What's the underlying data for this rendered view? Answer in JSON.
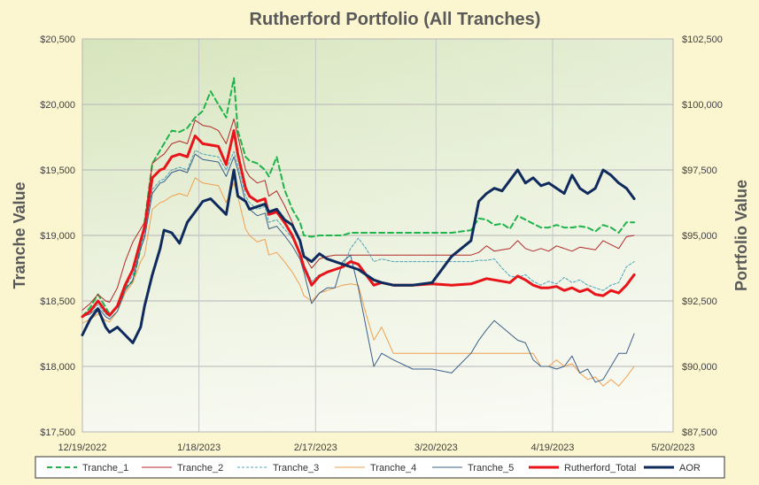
{
  "chart_data": {
    "type": "line",
    "title": "Rutherford Portfolio (All Tranches)",
    "ylabel_left": "Tranche Value",
    "ylabel_right": "Portfolio Value",
    "x_ticks": [
      "12/19/2022",
      "1/18/2023",
      "2/17/2023",
      "3/20/2023",
      "4/19/2023",
      "5/20/2023"
    ],
    "x_tick_days": [
      0,
      30,
      60,
      91,
      121,
      152
    ],
    "xlim_days": [
      0,
      152
    ],
    "left_ticks": [
      "$17,500",
      "$18,000",
      "$18,500",
      "$19,000",
      "$19,500",
      "$20,000",
      "$20,500"
    ],
    "right_ticks": [
      "$87,500",
      "$90,000",
      "$92,500",
      "$95,000",
      "$97,500",
      "$100,000",
      "$102,500"
    ],
    "ylim_left": [
      17500,
      20500
    ],
    "ylim_right": [
      87500,
      102500
    ],
    "grid": true,
    "legend_position": "bottom",
    "series": [
      {
        "name": "Tranche_1",
        "axis": "left",
        "color": "#1fb34a",
        "dash": "6,4",
        "width": 2,
        "x": [
          0,
          2,
          4,
          6,
          7,
          9,
          11,
          13,
          15,
          16,
          18,
          20,
          21,
          23,
          25,
          27,
          29,
          31,
          33,
          35,
          37,
          39,
          40,
          42,
          43,
          45,
          47,
          48,
          50,
          52,
          54,
          56,
          57,
          59,
          61,
          63,
          65,
          67,
          69,
          71,
          73,
          75,
          77,
          80,
          85,
          90,
          95,
          100,
          102,
          104,
          106,
          108,
          110,
          112,
          114,
          116,
          118,
          120,
          122,
          124,
          126,
          128,
          130,
          132,
          134,
          136,
          138,
          140,
          142
        ],
        "y": [
          18380,
          18450,
          18550,
          18450,
          18400,
          18450,
          18600,
          18650,
          18900,
          19100,
          19550,
          19650,
          19700,
          19800,
          19790,
          19820,
          19900,
          19950,
          20100,
          20000,
          19900,
          20200,
          19800,
          19600,
          19570,
          19550,
          19500,
          19450,
          19600,
          19350,
          19200,
          19100,
          19000,
          18990,
          19000,
          19000,
          19000,
          19000,
          19020,
          19020,
          19020,
          19020,
          19020,
          19020,
          19020,
          19020,
          19020,
          19040,
          19130,
          19120,
          19080,
          19090,
          19050,
          19150,
          19120,
          19090,
          19060,
          19060,
          19080,
          19060,
          19060,
          19070,
          19060,
          19030,
          19080,
          19060,
          19020,
          19100,
          19100
        ]
      },
      {
        "name": "Tranche_2",
        "axis": "left",
        "color": "#b22a2a",
        "dash": "",
        "width": 1,
        "x": [
          0,
          2,
          4,
          6,
          7,
          9,
          11,
          13,
          15,
          16,
          18,
          20,
          21,
          23,
          25,
          27,
          29,
          31,
          33,
          35,
          37,
          39,
          40,
          42,
          43,
          45,
          47,
          48,
          50,
          52,
          54,
          56,
          57,
          59,
          61,
          63,
          65,
          67,
          69,
          71,
          73,
          75,
          77,
          80,
          85,
          90,
          95,
          100,
          102,
          104,
          106,
          108,
          110,
          112,
          114,
          116,
          118,
          120,
          122,
          124,
          126,
          128,
          130,
          132,
          134,
          136,
          138,
          140,
          142
        ],
        "y": [
          18430,
          18480,
          18550,
          18500,
          18490,
          18600,
          18800,
          18950,
          19050,
          19100,
          19550,
          19600,
          19620,
          19700,
          19720,
          19700,
          19880,
          19840,
          19830,
          19800,
          19700,
          19890,
          19760,
          19500,
          19450,
          19400,
          19420,
          19300,
          19340,
          19230,
          19100,
          18950,
          18850,
          18750,
          18820,
          18840,
          18850,
          18850,
          18850,
          18850,
          18850,
          18850,
          18850,
          18850,
          18850,
          18850,
          18850,
          18850,
          18870,
          18920,
          18880,
          18890,
          18900,
          18960,
          18900,
          18880,
          18900,
          18880,
          18920,
          18900,
          18880,
          18910,
          18900,
          18890,
          18960,
          18930,
          18900,
          18990,
          19000
        ]
      },
      {
        "name": "Tranche_3",
        "axis": "left",
        "color": "#4fa3b8",
        "dash": "3,2",
        "width": 1,
        "x": [
          0,
          2,
          4,
          6,
          7,
          9,
          11,
          13,
          15,
          16,
          18,
          20,
          21,
          23,
          25,
          27,
          29,
          31,
          33,
          35,
          37,
          39,
          40,
          42,
          43,
          45,
          47,
          48,
          50,
          52,
          54,
          56,
          57,
          59,
          61,
          63,
          65,
          67,
          69,
          71,
          73,
          75,
          77,
          80,
          85,
          90,
          95,
          100,
          102,
          104,
          106,
          108,
          110,
          112,
          114,
          116,
          118,
          120,
          122,
          124,
          126,
          128,
          130,
          132,
          134,
          136,
          138,
          140,
          142
        ],
        "y": [
          18380,
          18420,
          18470,
          18400,
          18380,
          18450,
          18600,
          18700,
          18920,
          19000,
          19350,
          19420,
          19430,
          19500,
          19520,
          19500,
          19650,
          19620,
          19610,
          19600,
          19500,
          19640,
          19540,
          19300,
          19250,
          19200,
          19220,
          19100,
          19120,
          19050,
          18980,
          18880,
          18780,
          18650,
          18700,
          18720,
          18740,
          18760,
          18900,
          18980,
          18900,
          18800,
          18820,
          18800,
          18800,
          18800,
          18800,
          18800,
          18810,
          18810,
          18820,
          18750,
          18690,
          18680,
          18700,
          18650,
          18620,
          18650,
          18630,
          18680,
          18640,
          18660,
          18620,
          18600,
          18580,
          18620,
          18640,
          18760,
          18800
        ]
      },
      {
        "name": "Tranche_4",
        "axis": "left",
        "color": "#f0a050",
        "dash": "",
        "width": 1,
        "x": [
          0,
          2,
          4,
          6,
          7,
          9,
          11,
          13,
          15,
          16,
          18,
          20,
          21,
          23,
          25,
          27,
          29,
          31,
          33,
          35,
          37,
          39,
          40,
          42,
          43,
          45,
          47,
          48,
          50,
          52,
          54,
          56,
          57,
          59,
          61,
          63,
          65,
          67,
          69,
          71,
          73,
          75,
          77,
          80,
          85,
          90,
          95,
          100,
          102,
          104,
          106,
          108,
          110,
          112,
          114,
          116,
          118,
          120,
          122,
          124,
          126,
          128,
          130,
          132,
          134,
          136,
          138,
          140,
          142
        ],
        "y": [
          18330,
          18360,
          18400,
          18350,
          18340,
          18420,
          18560,
          18640,
          18800,
          18850,
          19200,
          19250,
          19260,
          19300,
          19320,
          19300,
          19440,
          19400,
          19390,
          19380,
          19250,
          19400,
          19300,
          19050,
          19000,
          18950,
          18970,
          18850,
          18870,
          18800,
          18720,
          18620,
          18540,
          18500,
          18560,
          18580,
          18600,
          18620,
          18630,
          18620,
          18400,
          18200,
          18300,
          18100,
          18100,
          18100,
          18100,
          18100,
          18100,
          18100,
          18100,
          18100,
          18100,
          18100,
          18100,
          18100,
          18000,
          18000,
          18050,
          18000,
          18020,
          17950,
          17900,
          17920,
          17850,
          17900,
          17850,
          17920,
          18000
        ]
      },
      {
        "name": "Tranche_5",
        "axis": "left",
        "color": "#3a5f8a",
        "dash": "",
        "width": 1,
        "x": [
          0,
          2,
          4,
          6,
          7,
          9,
          11,
          13,
          15,
          16,
          18,
          20,
          21,
          23,
          25,
          27,
          29,
          31,
          33,
          35,
          37,
          39,
          40,
          42,
          43,
          45,
          47,
          48,
          50,
          52,
          54,
          56,
          57,
          59,
          61,
          63,
          65,
          67,
          69,
          71,
          73,
          75,
          77,
          80,
          85,
          90,
          95,
          100,
          102,
          104,
          106,
          108,
          110,
          112,
          114,
          116,
          118,
          120,
          122,
          124,
          126,
          128,
          130,
          132,
          134,
          136,
          138,
          140,
          142
        ],
        "y": [
          18380,
          18400,
          18450,
          18380,
          18360,
          18420,
          18580,
          18660,
          18900,
          18980,
          19320,
          19400,
          19410,
          19480,
          19500,
          19480,
          19620,
          19580,
          19570,
          19560,
          19450,
          19600,
          19500,
          19250,
          19200,
          19150,
          19170,
          19050,
          19070,
          19000,
          18920,
          18820,
          18720,
          18480,
          18560,
          18600,
          18600,
          18800,
          18850,
          18600,
          18300,
          18000,
          18100,
          18050,
          17980,
          17980,
          17950,
          18100,
          18200,
          18280,
          18350,
          18300,
          18250,
          18200,
          18180,
          18050,
          18000,
          18000,
          17980,
          18000,
          18080,
          17950,
          17980,
          17880,
          17900,
          18000,
          18100,
          18100,
          18250
        ]
      },
      {
        "name": "Rutherford_Total",
        "axis": "right",
        "color": "#e8141a",
        "dash": "",
        "width": 3,
        "x": [
          0,
          2,
          4,
          6,
          7,
          9,
          11,
          13,
          15,
          16,
          18,
          20,
          21,
          23,
          25,
          27,
          29,
          31,
          33,
          35,
          37,
          39,
          40,
          42,
          43,
          45,
          47,
          48,
          50,
          52,
          54,
          56,
          57,
          59,
          61,
          63,
          65,
          67,
          69,
          71,
          73,
          75,
          77,
          80,
          85,
          90,
          95,
          100,
          102,
          104,
          106,
          108,
          110,
          112,
          114,
          116,
          118,
          120,
          122,
          124,
          126,
          128,
          130,
          132,
          134,
          136,
          138,
          140,
          142
        ],
        "y": [
          91900,
          92100,
          92500,
          92100,
          91950,
          92300,
          93100,
          93700,
          94800,
          95300,
          97200,
          97500,
          97550,
          98000,
          98100,
          98000,
          98800,
          98500,
          98450,
          98400,
          97700,
          99000,
          98100,
          96800,
          96500,
          96300,
          96400,
          95800,
          95900,
          95500,
          95000,
          94300,
          93800,
          93100,
          93450,
          93600,
          93700,
          93800,
          94000,
          93900,
          93500,
          93100,
          93200,
          93100,
          93100,
          93150,
          93100,
          93150,
          93250,
          93350,
          93300,
          93250,
          93200,
          93450,
          93300,
          93100,
          93000,
          93000,
          93050,
          92900,
          93000,
          92850,
          92950,
          92750,
          92700,
          92900,
          92800,
          93100,
          93500
        ]
      },
      {
        "name": "AOR",
        "axis": "right",
        "color": "#0f2a5c",
        "dash": "",
        "width": 3,
        "x": [
          0,
          2,
          4,
          6,
          7,
          9,
          11,
          13,
          15,
          16,
          18,
          20,
          21,
          23,
          25,
          27,
          29,
          31,
          33,
          35,
          37,
          39,
          40,
          42,
          43,
          45,
          47,
          48,
          50,
          52,
          54,
          56,
          57,
          59,
          61,
          63,
          65,
          67,
          69,
          71,
          73,
          75,
          77,
          80,
          85,
          90,
          95,
          100,
          102,
          104,
          106,
          108,
          110,
          112,
          114,
          116,
          118,
          120,
          122,
          124,
          126,
          128,
          130,
          132,
          134,
          136,
          138,
          140,
          142
        ],
        "y": [
          91200,
          91800,
          92200,
          91500,
          91300,
          91500,
          91200,
          90900,
          91500,
          92300,
          93500,
          94500,
          95200,
          95100,
          94700,
          95500,
          95900,
          96300,
          96400,
          96100,
          95800,
          97500,
          96500,
          96300,
          96000,
          96100,
          96200,
          95900,
          96000,
          95600,
          95400,
          94800,
          94200,
          94000,
          94300,
          94100,
          94000,
          93900,
          93800,
          93700,
          93500,
          93300,
          93200,
          93100,
          93100,
          93200,
          94200,
          94800,
          96300,
          96600,
          96800,
          96700,
          97100,
          97500,
          97000,
          97200,
          96900,
          97000,
          96800,
          96600,
          97300,
          96800,
          96600,
          96800,
          97500,
          97300,
          97000,
          96800,
          96400
        ]
      }
    ]
  }
}
